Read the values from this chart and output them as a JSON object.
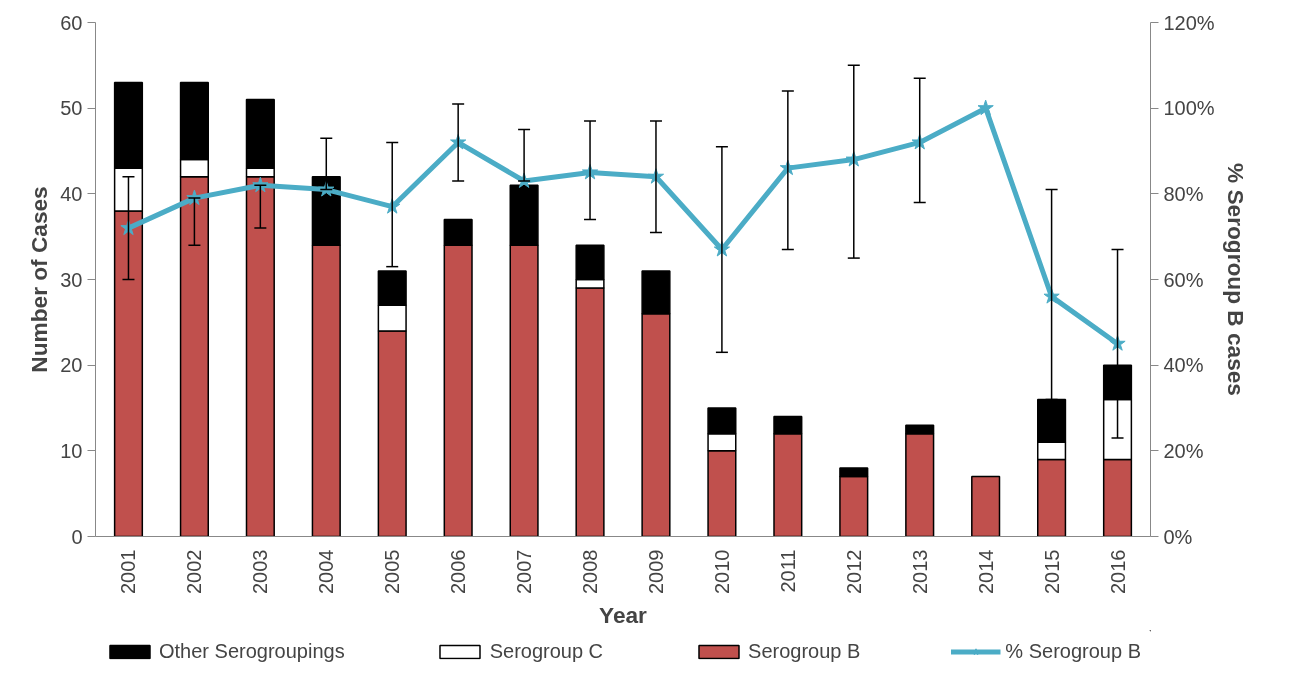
{
  "chart_data": {
    "type": "bar",
    "stacked": true,
    "xlabel": "Year",
    "ylabel": "Number of Cases",
    "y2label": "% Serogroup B cases",
    "categories": [
      "2001",
      "2002",
      "2003",
      "2004",
      "2005",
      "2006",
      "2007",
      "2008",
      "2009",
      "2010",
      "2011",
      "2012",
      "2013",
      "2014",
      "2015",
      "2016"
    ],
    "series": [
      {
        "name": "Serogroup B",
        "color": "#c0504d",
        "values": [
          38,
          42,
          42,
          34,
          24,
          34,
          34,
          29,
          26,
          10,
          12,
          7,
          12,
          7,
          9,
          9
        ]
      },
      {
        "name": "Serogroup C",
        "color": "#ffffff",
        "values": [
          5,
          2,
          1,
          0,
          3,
          0,
          0,
          1,
          0,
          2,
          0,
          0,
          0,
          0,
          2,
          7
        ]
      },
      {
        "name": "Other Serogroupings",
        "color": "#000000",
        "values": [
          10,
          9,
          8,
          8,
          4,
          3,
          7,
          4,
          5,
          3,
          2,
          1,
          1,
          0,
          5,
          4
        ]
      },
      {
        "name": "% Serogroup B",
        "type": "line",
        "axis": "y2",
        "color": "#4bacc6",
        "marker": "star",
        "values": [
          72,
          79,
          82,
          81,
          77,
          92,
          83,
          85,
          84,
          67,
          86,
          88,
          92,
          100,
          56,
          45
        ],
        "errors": [
          [
            60,
            84
          ],
          [
            68,
            79
          ],
          [
            72,
            82
          ],
          [
            81,
            93
          ],
          [
            63,
            92
          ],
          [
            83,
            101
          ],
          [
            83,
            95
          ],
          [
            74,
            97
          ],
          [
            71,
            97
          ],
          [
            43,
            91
          ],
          [
            67,
            104
          ],
          [
            65,
            110
          ],
          [
            78,
            107
          ],
          null,
          [
            32,
            81
          ],
          [
            23,
            67
          ]
        ]
      }
    ],
    "ylim": [
      0,
      60
    ],
    "yticks": [
      0,
      10,
      20,
      30,
      40,
      50,
      60
    ],
    "y2lim": [
      0,
      120
    ],
    "y2ticks": [
      {
        "value": 0,
        "label": "0%"
      },
      {
        "value": 20,
        "label": "20%"
      },
      {
        "value": 40,
        "label": "40%"
      },
      {
        "value": 60,
        "label": "60%"
      },
      {
        "value": 80,
        "label": "80%"
      },
      {
        "value": 100,
        "label": "100%"
      },
      {
        "value": 120,
        "label": "120%"
      }
    ],
    "grid": false,
    "legend": "bottom"
  }
}
